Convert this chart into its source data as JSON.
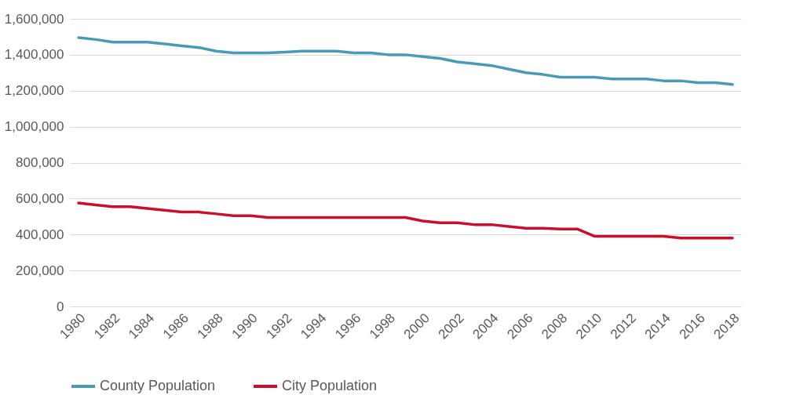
{
  "chart_data": {
    "type": "line",
    "x": [
      1980,
      1981,
      1982,
      1983,
      1984,
      1985,
      1986,
      1987,
      1988,
      1989,
      1990,
      1991,
      1992,
      1993,
      1994,
      1995,
      1996,
      1997,
      1998,
      1999,
      2000,
      2001,
      2002,
      2003,
      2004,
      2005,
      2006,
      2007,
      2008,
      2009,
      2010,
      2011,
      2012,
      2013,
      2014,
      2015,
      2016,
      2017,
      2018
    ],
    "series": [
      {
        "name": "County Population",
        "color": "#4a9ab5",
        "values": [
          1495000,
          1485000,
          1470000,
          1470000,
          1470000,
          1460000,
          1450000,
          1440000,
          1420000,
          1410000,
          1410000,
          1410000,
          1415000,
          1420000,
          1420000,
          1420000,
          1410000,
          1410000,
          1400000,
          1400000,
          1390000,
          1380000,
          1360000,
          1350000,
          1340000,
          1320000,
          1300000,
          1290000,
          1275000,
          1275000,
          1275000,
          1265000,
          1265000,
          1265000,
          1255000,
          1255000,
          1245000,
          1245000,
          1235000
        ]
      },
      {
        "name": "City Population",
        "color": "#c8102e",
        "values": [
          575000,
          565000,
          555000,
          555000,
          545000,
          535000,
          525000,
          525000,
          515000,
          505000,
          505000,
          495000,
          495000,
          495000,
          495000,
          495000,
          495000,
          495000,
          495000,
          495000,
          475000,
          465000,
          465000,
          455000,
          455000,
          445000,
          435000,
          435000,
          430000,
          430000,
          390000,
          390000,
          390000,
          390000,
          390000,
          380000,
          380000,
          380000,
          380000
        ]
      }
    ],
    "xlim": [
      1979.5,
      2018.5
    ],
    "xticks": [
      1980,
      1982,
      1984,
      1986,
      1988,
      1990,
      1992,
      1994,
      1996,
      1998,
      2000,
      2002,
      2004,
      2006,
      2008,
      2010,
      2012,
      2014,
      2016,
      2018
    ],
    "ylim": [
      0,
      1600000
    ],
    "yticks": [
      {
        "value": 0,
        "label": "0"
      },
      {
        "value": 200000,
        "label": "200,000"
      },
      {
        "value": 400000,
        "label": "400,000"
      },
      {
        "value": 600000,
        "label": "600,000"
      },
      {
        "value": 800000,
        "label": "800,000"
      },
      {
        "value": 1000000,
        "label": "1,000,000"
      },
      {
        "value": 1200000,
        "label": "1,200,000"
      },
      {
        "value": 1400000,
        "label": "1,400,000"
      },
      {
        "value": 1600000,
        "label": "1,600,000"
      }
    ],
    "grid": "y",
    "legend": "bottom",
    "line_style": "solid",
    "marker": "none"
  }
}
